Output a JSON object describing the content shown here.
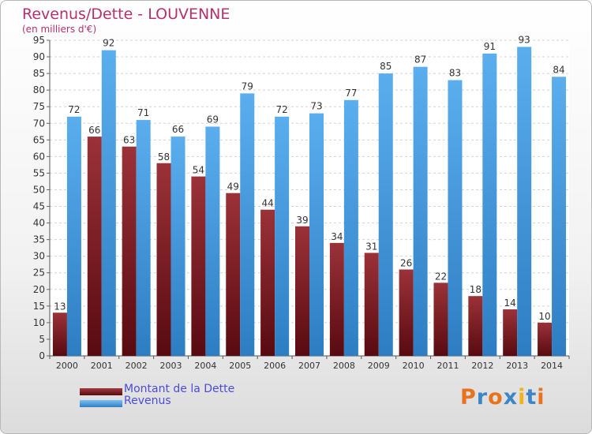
{
  "header": {
    "title": "Revenus/Dette - LOUVENNE",
    "subtitle": "(en milliers d'€)"
  },
  "colors": {
    "title": "#b5306f",
    "legend_text": "#4b4bd6",
    "dette": "#7a1a20",
    "revenus": "#3d9be6"
  },
  "chart_data": {
    "type": "bar",
    "categories": [
      "2000",
      "2001",
      "2002",
      "2003",
      "2004",
      "2005",
      "2006",
      "2007",
      "2008",
      "2009",
      "2010",
      "2011",
      "2012",
      "2013",
      "2014"
    ],
    "series": [
      {
        "name": "Montant de la Dette",
        "values": [
          13,
          66,
          63,
          58,
          54,
          49,
          44,
          39,
          34,
          31,
          26,
          22,
          18,
          14,
          10
        ]
      },
      {
        "name": "Revenus",
        "values": [
          72,
          92,
          71,
          66,
          69,
          79,
          72,
          73,
          77,
          85,
          87,
          83,
          91,
          93,
          84
        ]
      }
    ],
    "ylim": [
      0,
      95
    ],
    "yticks": [
      0,
      5,
      10,
      15,
      20,
      25,
      30,
      35,
      40,
      45,
      50,
      55,
      60,
      65,
      70,
      75,
      80,
      85,
      90,
      95
    ],
    "grid": true,
    "legend": "bottom-left"
  },
  "legend": {
    "items": [
      {
        "label": "Montant de la Dette",
        "color": "#7a1a20"
      },
      {
        "label": "Revenus",
        "color": "#3d9be6"
      }
    ]
  },
  "logo": {
    "text": "Proxiti",
    "letter_colors": [
      "#e8731e",
      "#3d86c6",
      "#e8731e",
      "#3d86c6",
      "#f2b21b",
      "#3d86c6",
      "#e8731e"
    ]
  }
}
